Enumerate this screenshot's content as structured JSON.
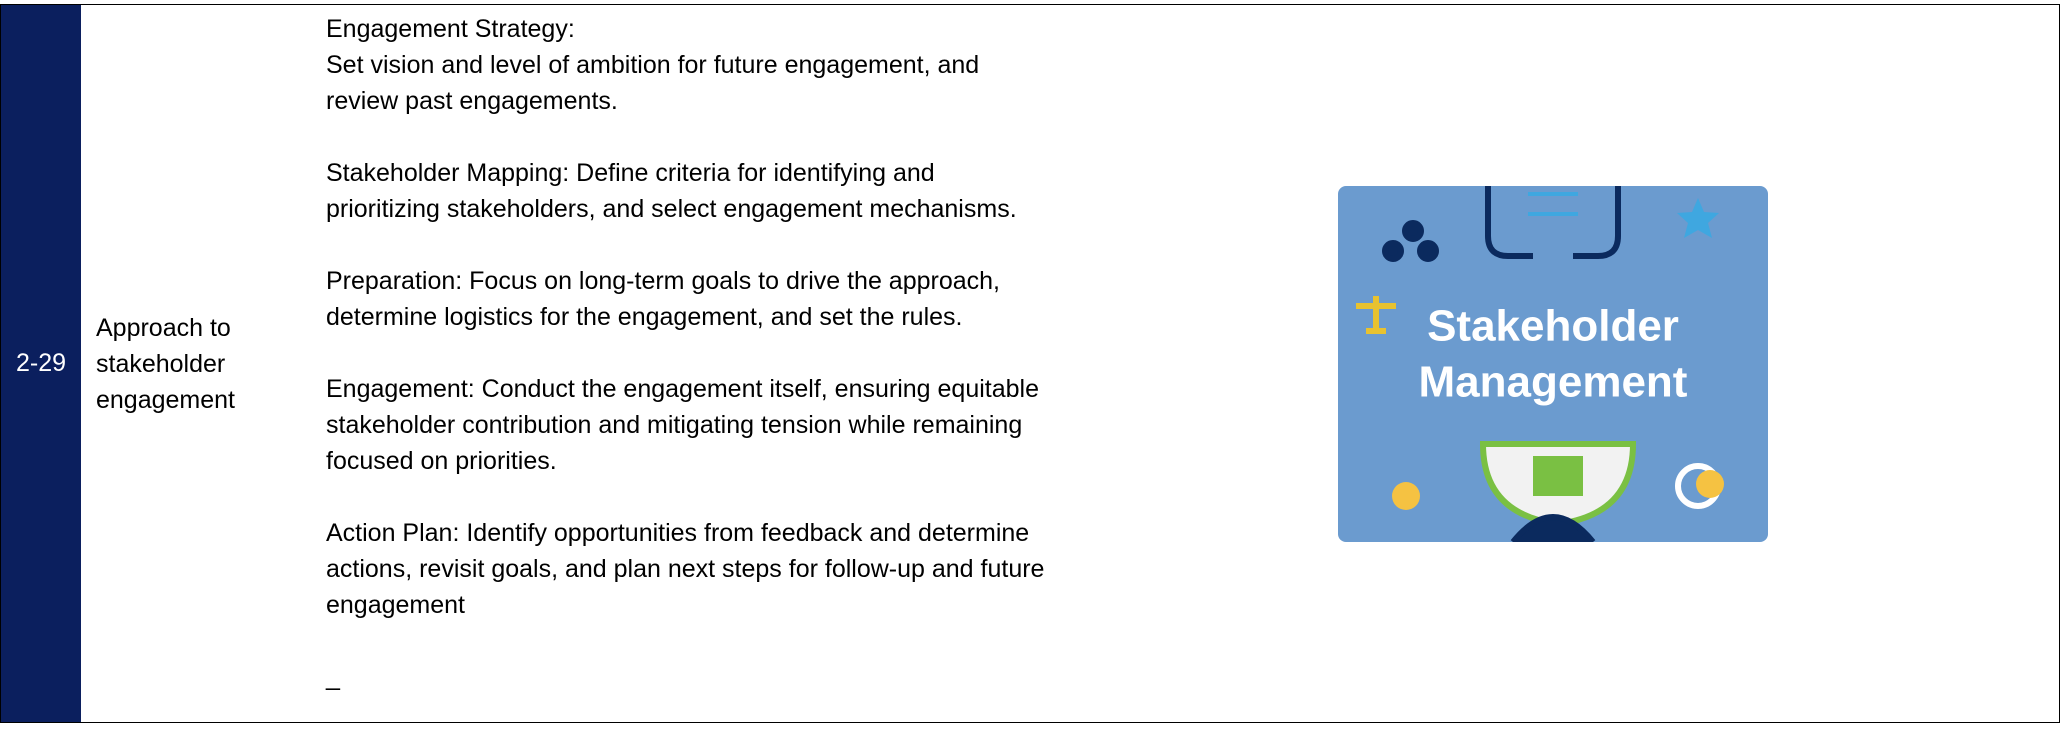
{
  "table": {
    "rows": [
      {
        "id": "2-29",
        "topic": "Approach to stakeholder engagement",
        "description": [
          "Engagement Strategy:",
          "Set vision and level of ambition for future engagement, and review past engagements.",
          "Stakeholder Mapping: Define criteria for identifying and prioritizing stakeholders, and select engagement mechanisms.",
          "Preparation: Focus on long-term goals to drive the approach, determine logistics for the engagement, and set the rules.",
          "Engagement: Conduct the engagement itself, ensuring equitable stakeholder contribution and mitigating tension while remaining focused on priorities.",
          "Action Plan: Identify opportunities from feedback and determine actions, revisit goals, and plan next steps for follow-up and future engagement",
          "_"
        ],
        "image": {
          "title_lines": [
            "Stakeholder",
            "Management"
          ]
        }
      }
    ]
  }
}
